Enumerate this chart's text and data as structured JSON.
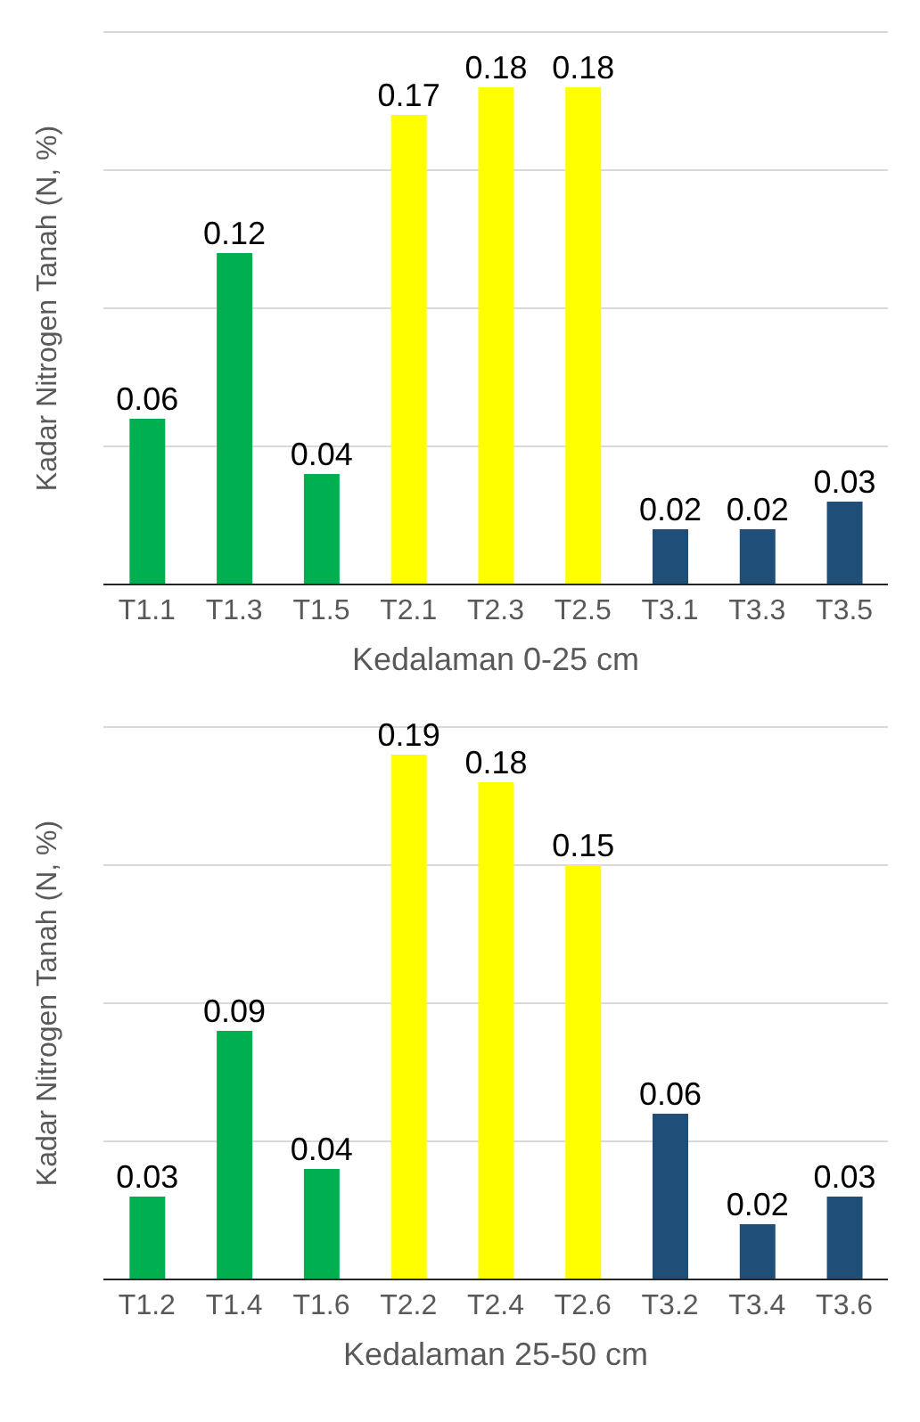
{
  "chart_data": [
    {
      "type": "bar",
      "categories": [
        "T1.1",
        "T1.3",
        "T1.5",
        "T2.1",
        "T2.3",
        "T2.5",
        "T3.1",
        "T3.3",
        "T3.5"
      ],
      "values": [
        0.06,
        0.12,
        0.04,
        0.17,
        0.18,
        0.18,
        0.02,
        0.02,
        0.03
      ],
      "colors": [
        "#00b050",
        "#00b050",
        "#00b050",
        "#ffff00",
        "#ffff00",
        "#ffff00",
        "#1f4e79",
        "#1f4e79",
        "#1f4e79"
      ],
      "xlabel": "Kedalaman 0-25 cm",
      "ylabel": "Kadar Nitrogen Tanah (N, %)",
      "ylim": [
        0,
        0.2
      ],
      "yticks": [
        {
          "value": 0,
          "label": null
        },
        {
          "value": 0.05,
          "label": null
        },
        {
          "value": 0.1,
          "label": null
        },
        {
          "value": 0.15,
          "label": null
        },
        {
          "value": 0.2,
          "label": null
        }
      ],
      "grid": "y",
      "tick_labels": "x",
      "data_labels": true
    },
    {
      "type": "bar",
      "categories": [
        "T1.2",
        "T1.4",
        "T1.6",
        "T2.2",
        "T2.4",
        "T2.6",
        "T3.2",
        "T3.4",
        "T3.6"
      ],
      "values": [
        0.03,
        0.09,
        0.04,
        0.19,
        0.18,
        0.15,
        0.06,
        0.02,
        0.03
      ],
      "colors": [
        "#00b050",
        "#00b050",
        "#00b050",
        "#ffff00",
        "#ffff00",
        "#ffff00",
        "#1f4e79",
        "#1f4e79",
        "#1f4e79"
      ],
      "xlabel": "Kedalaman 25-50 cm",
      "ylabel": "Kadar Nitrogen Tanah (N, %)",
      "ylim": [
        0,
        0.2
      ],
      "yticks": [
        {
          "value": 0,
          "label": null
        },
        {
          "value": 0.05,
          "label": null
        },
        {
          "value": 0.1,
          "label": null
        },
        {
          "value": 0.15,
          "label": null
        },
        {
          "value": 0.2,
          "label": null
        }
      ],
      "grid": "y",
      "tick_labels": "x",
      "data_labels": true
    }
  ]
}
